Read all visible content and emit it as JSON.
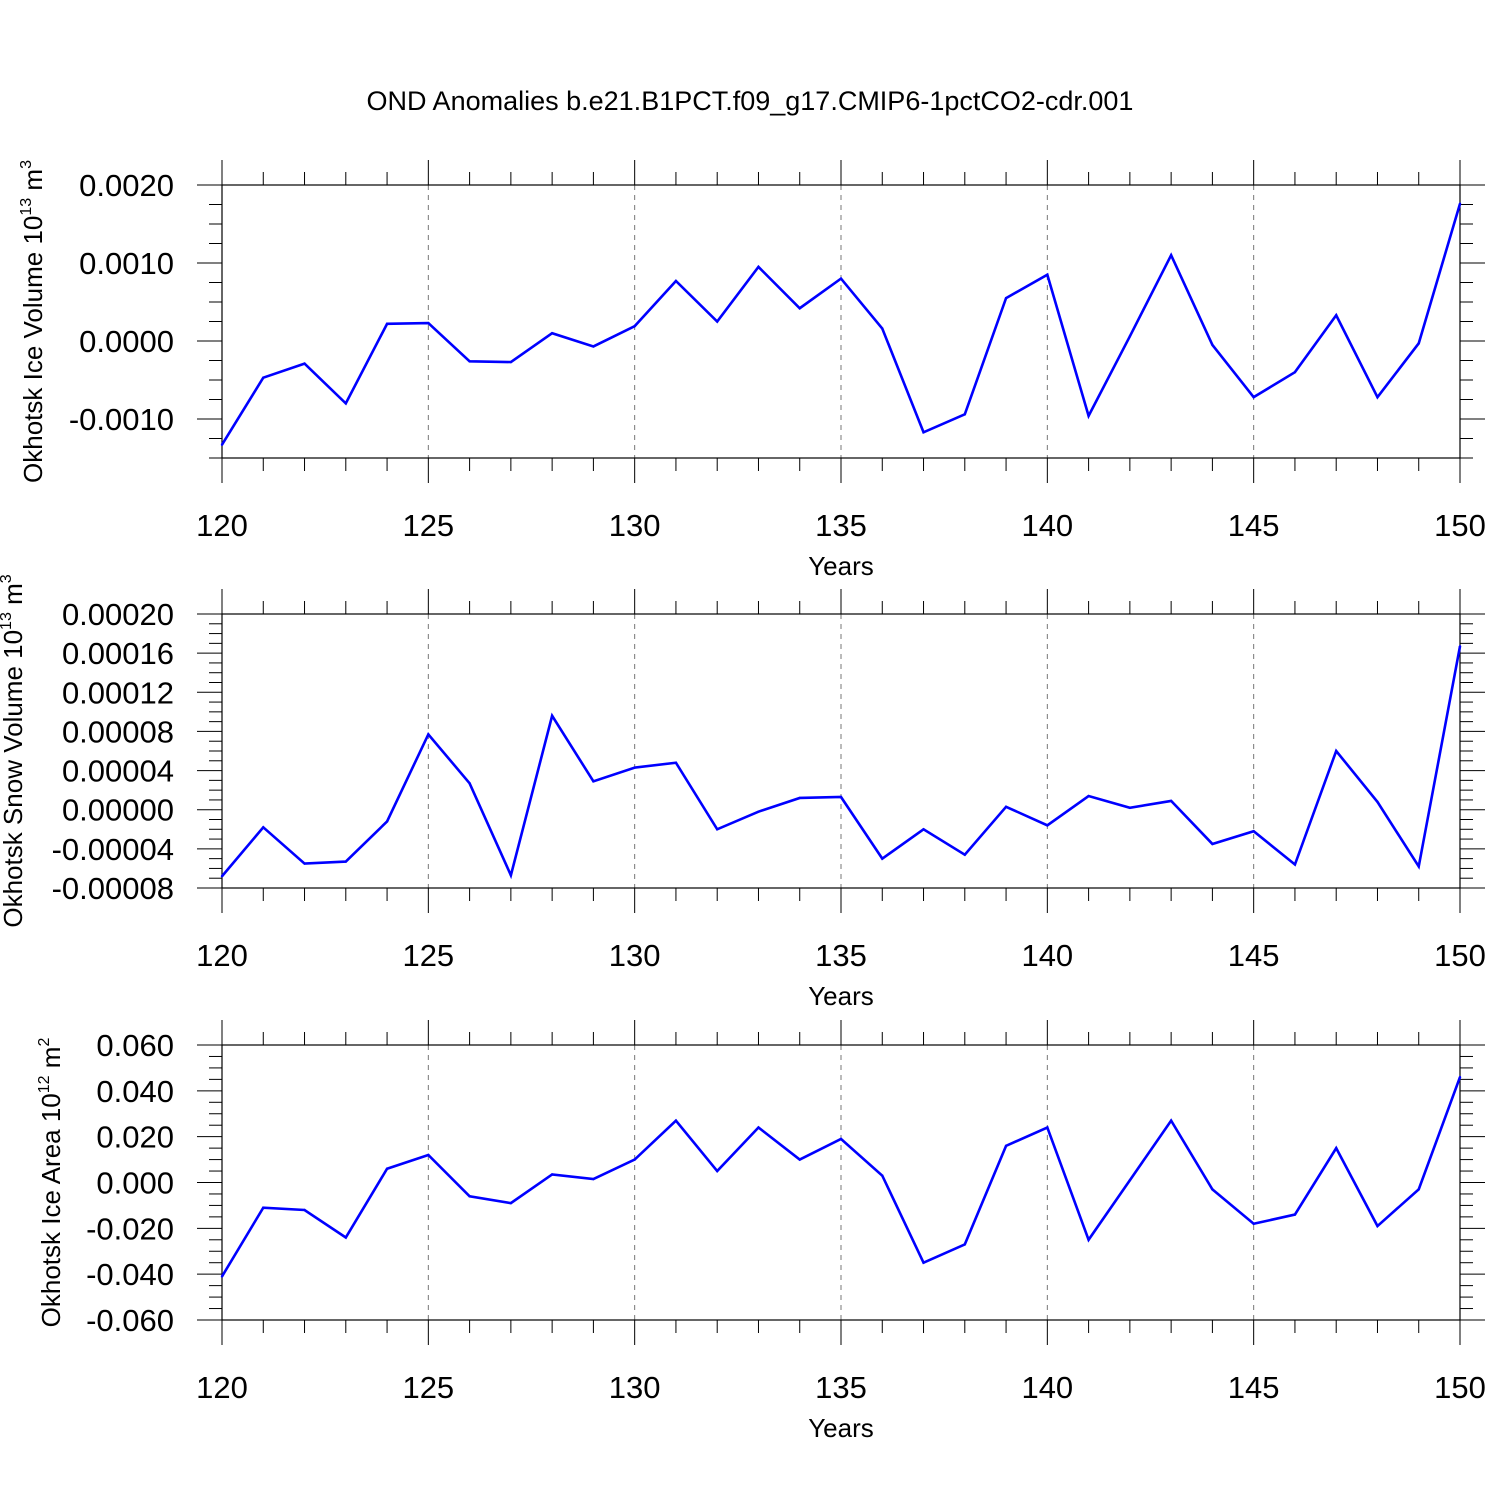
{
  "title": "OND Anomalies b.e21.B1PCT.f09_g17.CMIP6-1pctCO2-cdr.001",
  "line_color": "#0000ff",
  "chart_data": [
    {
      "type": "line",
      "ylabel": "Okhotsk Ice Volume 10",
      "ylabel_exp": "13",
      "ylabel_unit": " m",
      "ylabel_unit_exp": "3",
      "xlabel": "Years",
      "xlim": [
        120,
        150
      ],
      "ylim": [
        -0.0015,
        0.002
      ],
      "xticks": [
        120,
        125,
        130,
        135,
        140,
        145,
        150
      ],
      "xtick_labels": [
        "120",
        "125",
        "130",
        "135",
        "140",
        "145",
        "150"
      ],
      "yticks": [
        -0.001,
        0.0,
        0.001,
        0.002
      ],
      "ytick_labels": [
        "-0.0010",
        "0.0000",
        "0.0010",
        "0.0020"
      ],
      "grid": "dashed vertical at major x ticks",
      "x": [
        120,
        121,
        122,
        123,
        124,
        125,
        126,
        127,
        128,
        129,
        130,
        131,
        132,
        133,
        134,
        135,
        136,
        137,
        138,
        139,
        140,
        141,
        142,
        143,
        144,
        145,
        146,
        147,
        148,
        149,
        150
      ],
      "values": [
        -0.00133,
        -0.00047,
        -0.00029,
        -0.0008,
        0.00022,
        0.00023,
        -0.00026,
        -0.00027,
        0.0001,
        -7e-05,
        0.00019,
        0.00077,
        0.00025,
        0.00095,
        0.00042,
        0.0008,
        0.00016,
        -0.00117,
        -0.00094,
        0.00055,
        0.00085,
        -0.00096,
        6e-05,
        0.0011,
        -5e-05,
        -0.00072,
        -0.0004,
        0.00033,
        -0.00072,
        -3e-05,
        0.00176
      ]
    },
    {
      "type": "line",
      "ylabel": "Okhotsk Snow Volume 10",
      "ylabel_exp": "13",
      "ylabel_unit": " m",
      "ylabel_unit_exp": "3",
      "xlabel": "Years",
      "xlim": [
        120,
        150
      ],
      "ylim": [
        -8e-05,
        0.0002
      ],
      "xticks": [
        120,
        125,
        130,
        135,
        140,
        145,
        150
      ],
      "xtick_labels": [
        "120",
        "125",
        "130",
        "135",
        "140",
        "145",
        "150"
      ],
      "yticks": [
        -8e-05,
        -4e-05,
        0.0,
        4e-05,
        8e-05,
        0.00012,
        0.00016,
        0.0002
      ],
      "ytick_labels": [
        "-0.00008",
        "-0.00004",
        "0.00000",
        "0.00004",
        "0.00008",
        "0.00012",
        "0.00016",
        "0.00020"
      ],
      "grid": "dashed vertical at major x ticks",
      "x": [
        120,
        121,
        122,
        123,
        124,
        125,
        126,
        127,
        128,
        129,
        130,
        131,
        132,
        133,
        134,
        135,
        136,
        137,
        138,
        139,
        140,
        141,
        142,
        143,
        144,
        145,
        146,
        147,
        148,
        149,
        150
      ],
      "values": [
        -6.8e-05,
        -1.8e-05,
        -5.5e-05,
        -5.3e-05,
        -1.2e-05,
        7.7e-05,
        2.7e-05,
        -6.7e-05,
        9.6e-05,
        2.9e-05,
        4.3e-05,
        4.8e-05,
        -2e-05,
        -2e-06,
        1.2e-05,
        1.3e-05,
        -5e-05,
        -2e-05,
        -4.6e-05,
        3e-06,
        -1.6e-05,
        1.4e-05,
        2e-06,
        9e-06,
        -3.5e-05,
        -2.2e-05,
        -5.6e-05,
        6e-05,
        8e-06,
        -5.8e-05,
        0.000167
      ]
    },
    {
      "type": "line",
      "ylabel": "Okhotsk Ice Area 10",
      "ylabel_exp": "12",
      "ylabel_unit": " m",
      "ylabel_unit_exp": "2",
      "xlabel": "Years",
      "xlim": [
        120,
        150
      ],
      "ylim": [
        -0.06,
        0.06
      ],
      "xticks": [
        120,
        125,
        130,
        135,
        140,
        145,
        150
      ],
      "xtick_labels": [
        "120",
        "125",
        "130",
        "135",
        "140",
        "145",
        "150"
      ],
      "yticks": [
        -0.06,
        -0.04,
        -0.02,
        0.0,
        0.02,
        0.04,
        0.06
      ],
      "ytick_labels": [
        "-0.060",
        "-0.040",
        "-0.020",
        "0.000",
        "0.020",
        "0.040",
        "0.060"
      ],
      "grid": "dashed vertical at major x ticks",
      "x": [
        120,
        121,
        122,
        123,
        124,
        125,
        126,
        127,
        128,
        129,
        130,
        131,
        132,
        133,
        134,
        135,
        136,
        137,
        138,
        139,
        140,
        141,
        142,
        143,
        144,
        145,
        146,
        147,
        148,
        149,
        150
      ],
      "values": [
        -0.041,
        -0.011,
        -0.012,
        -0.024,
        0.006,
        0.012,
        -0.006,
        -0.009,
        0.0035,
        0.0015,
        0.01,
        0.027,
        0.005,
        0.024,
        0.01,
        0.019,
        0.003,
        -0.035,
        -0.027,
        0.016,
        0.024,
        -0.025,
        0.001,
        0.027,
        -0.003,
        -0.018,
        -0.014,
        0.015,
        -0.019,
        -0.003,
        0.046
      ]
    }
  ]
}
